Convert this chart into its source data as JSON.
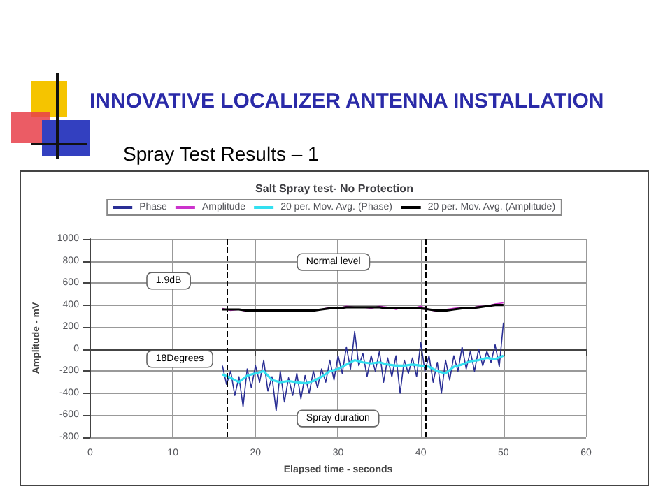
{
  "chart_data": {
    "type": "line",
    "title": "INNOVATIVE LOCALIZER ANTENNA INSTALLATION",
    "subtitle": "Spray Test Results – 1",
    "xlabel": "Elapsed time - seconds",
    "ylabel": "Amplitude - mV",
    "xlim": [
      0,
      60
    ],
    "xticks": [
      0,
      10,
      20,
      30,
      40,
      50,
      60
    ],
    "ylim": [
      -800,
      1000
    ],
    "yticks": [
      -800,
      -600,
      -400,
      -200,
      0,
      200,
      400,
      600,
      800,
      1000
    ],
    "grid": true,
    "legend": "top",
    "marker": "none",
    "line_style": "solid",
    "series": [
      {
        "name": "Phase",
        "color": "#2a2f95",
        "x": [
          16,
          16.5,
          17,
          17.5,
          18,
          18.5,
          19,
          19.5,
          20,
          20.5,
          21,
          21.5,
          22,
          22.5,
          23,
          23.5,
          24,
          24.5,
          25,
          25.5,
          26,
          26.5,
          27,
          27.5,
          28,
          28.5,
          29,
          29.5,
          30,
          30.5,
          31,
          31.5,
          32,
          32.5,
          33,
          33.5,
          34,
          34.5,
          35,
          35.5,
          36,
          36.5,
          37,
          37.5,
          38,
          38.5,
          39,
          39.5,
          40,
          40.5,
          41,
          41.5,
          42,
          42.5,
          43,
          43.5,
          44,
          44.5,
          45,
          45.5,
          46,
          46.5,
          47,
          47.5,
          48,
          48.5,
          49,
          49.5,
          50
        ],
        "values": [
          -150,
          -320,
          -200,
          -420,
          -250,
          -520,
          -180,
          -350,
          -150,
          -300,
          -100,
          -380,
          -250,
          -560,
          -200,
          -480,
          -260,
          -420,
          -220,
          -450,
          -240,
          -400,
          -200,
          -350,
          -180,
          -300,
          -100,
          -280,
          -60,
          -220,
          20,
          -180,
          160,
          -150,
          -40,
          -250,
          -60,
          -200,
          -20,
          -300,
          -80,
          -250,
          -60,
          -400,
          -100,
          -220,
          -80,
          -250,
          60,
          -200,
          -60,
          -300,
          -120,
          -400,
          -100,
          -280,
          -60,
          -200,
          20,
          -180,
          -20,
          -200,
          0,
          -150,
          -20,
          -120,
          40,
          -160,
          240
        ]
      },
      {
        "name": "Amplitude",
        "color": "#cc33cc",
        "x": [
          16,
          17,
          18,
          19,
          20,
          21,
          22,
          23,
          24,
          25,
          26,
          27,
          28,
          29,
          30,
          31,
          32,
          33,
          34,
          35,
          36,
          37,
          38,
          39,
          40,
          41,
          42,
          43,
          44,
          45,
          46,
          47,
          48,
          49,
          50
        ],
        "values": [
          370,
          350,
          360,
          340,
          360,
          340,
          350,
          350,
          340,
          360,
          340,
          350,
          360,
          380,
          370,
          390,
          380,
          380,
          370,
          390,
          380,
          360,
          380,
          370,
          390,
          360,
          340,
          360,
          370,
          380,
          370,
          390,
          390,
          410,
          420
        ]
      },
      {
        "name": "20 per. Mov. Avg. (Phase)",
        "color": "#33e0f0",
        "x": [
          16,
          17,
          18,
          19,
          20,
          21,
          22,
          23,
          24,
          25,
          26,
          27,
          28,
          29,
          30,
          31,
          32,
          33,
          34,
          35,
          36,
          37,
          38,
          39,
          40,
          41,
          42,
          43,
          44,
          45,
          46,
          47,
          48,
          49,
          50
        ],
        "values": [
          -230,
          -260,
          -300,
          -240,
          -220,
          -200,
          -280,
          -300,
          -290,
          -300,
          -310,
          -290,
          -250,
          -200,
          -180,
          -140,
          -100,
          -120,
          -130,
          -120,
          -140,
          -150,
          -150,
          -140,
          -150,
          -160,
          -200,
          -220,
          -160,
          -140,
          -110,
          -100,
          -80,
          -90,
          -60
        ]
      },
      {
        "name": "20 per. Mov. Avg. (Amplitude)",
        "color": "#000000",
        "x": [
          16,
          17,
          18,
          19,
          20,
          21,
          22,
          23,
          24,
          25,
          26,
          27,
          28,
          29,
          30,
          31,
          32,
          33,
          34,
          35,
          36,
          37,
          38,
          39,
          40,
          41,
          42,
          43,
          44,
          45,
          46,
          47,
          48,
          49,
          50
        ],
        "values": [
          360,
          360,
          360,
          350,
          350,
          350,
          350,
          350,
          350,
          350,
          350,
          350,
          360,
          370,
          370,
          380,
          380,
          380,
          380,
          380,
          370,
          370,
          370,
          370,
          370,
          360,
          350,
          350,
          360,
          370,
          370,
          380,
          390,
          400,
          400
        ]
      }
    ],
    "ref_lines": [
      {
        "axis": "x",
        "value": 16.5,
        "color": "#000000",
        "line_style": "dashed"
      },
      {
        "axis": "x",
        "value": 40.5,
        "color": "#000000",
        "line_style": "dashed"
      }
    ],
    "annotations": [
      "Salt Spray test- No Protection",
      "1.9dB",
      "Normal level",
      "18Degrees",
      "Spray duration"
    ]
  }
}
